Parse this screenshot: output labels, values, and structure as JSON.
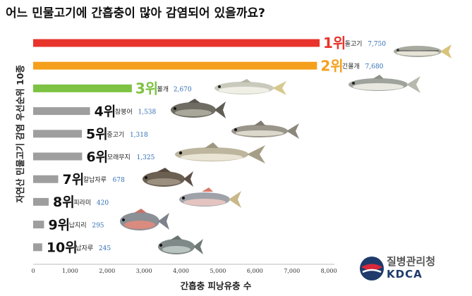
{
  "title": "어느 민물고기에 간흡충이 많아 감염되어 있을까요?",
  "colors": {
    "rank1": "#e8342d",
    "rank2": "#f5a01d",
    "rank3": "#7dc242",
    "rest": "#9e9e9e",
    "value": "#2e6db4"
  },
  "chart_data": {
    "type": "bar",
    "orientation": "horizontal",
    "ylabel": "자연산 민물고기 감염 우선순위 10종",
    "xlabel": "간흡충 피낭유충 수",
    "xlim": [
      0,
      8000
    ],
    "xticks": [
      "0",
      "1,000",
      "2,000",
      "3,000",
      "4,000",
      "5,000",
      "6,000",
      "7,000",
      "8,000"
    ],
    "xtick_values": [
      0,
      1000,
      2000,
      3000,
      4000,
      5000,
      6000,
      7000,
      8000
    ],
    "bars": [
      {
        "rank": "1위",
        "name": "돌고기",
        "value": 7750,
        "value_label": "7,750",
        "color": "#e8342d"
      },
      {
        "rank": "2위",
        "name": "긴몰개",
        "value": 7680,
        "value_label": "7,680",
        "color": "#f5a01d"
      },
      {
        "rank": "3위",
        "name": "몰개",
        "value": 2670,
        "value_label": "2,670",
        "color": "#7dc242"
      },
      {
        "rank": "4위",
        "name": "참붕어",
        "value": 1538,
        "value_label": "1,538",
        "color": "#9e9e9e"
      },
      {
        "rank": "5위",
        "name": "중고기",
        "value": 1318,
        "value_label": "1,318",
        "color": "#9e9e9e"
      },
      {
        "rank": "6위",
        "name": "모래무지",
        "value": 1325,
        "value_label": "1,325",
        "color": "#9e9e9e"
      },
      {
        "rank": "7위",
        "name": "칼납자루",
        "value": 678,
        "value_label": "678",
        "color": "#9e9e9e"
      },
      {
        "rank": "8위",
        "name": "피라미",
        "value": 420,
        "value_label": "420",
        "color": "#9e9e9e"
      },
      {
        "rank": "9위",
        "name": "납지리",
        "value": 295,
        "value_label": "295",
        "color": "#9e9e9e"
      },
      {
        "rank": "10위",
        "name": "납자루",
        "value": 245,
        "value_label": "245",
        "color": "#9e9e9e"
      }
    ]
  },
  "logo": {
    "org": "질병관리청",
    "abbr": "KDCA"
  }
}
